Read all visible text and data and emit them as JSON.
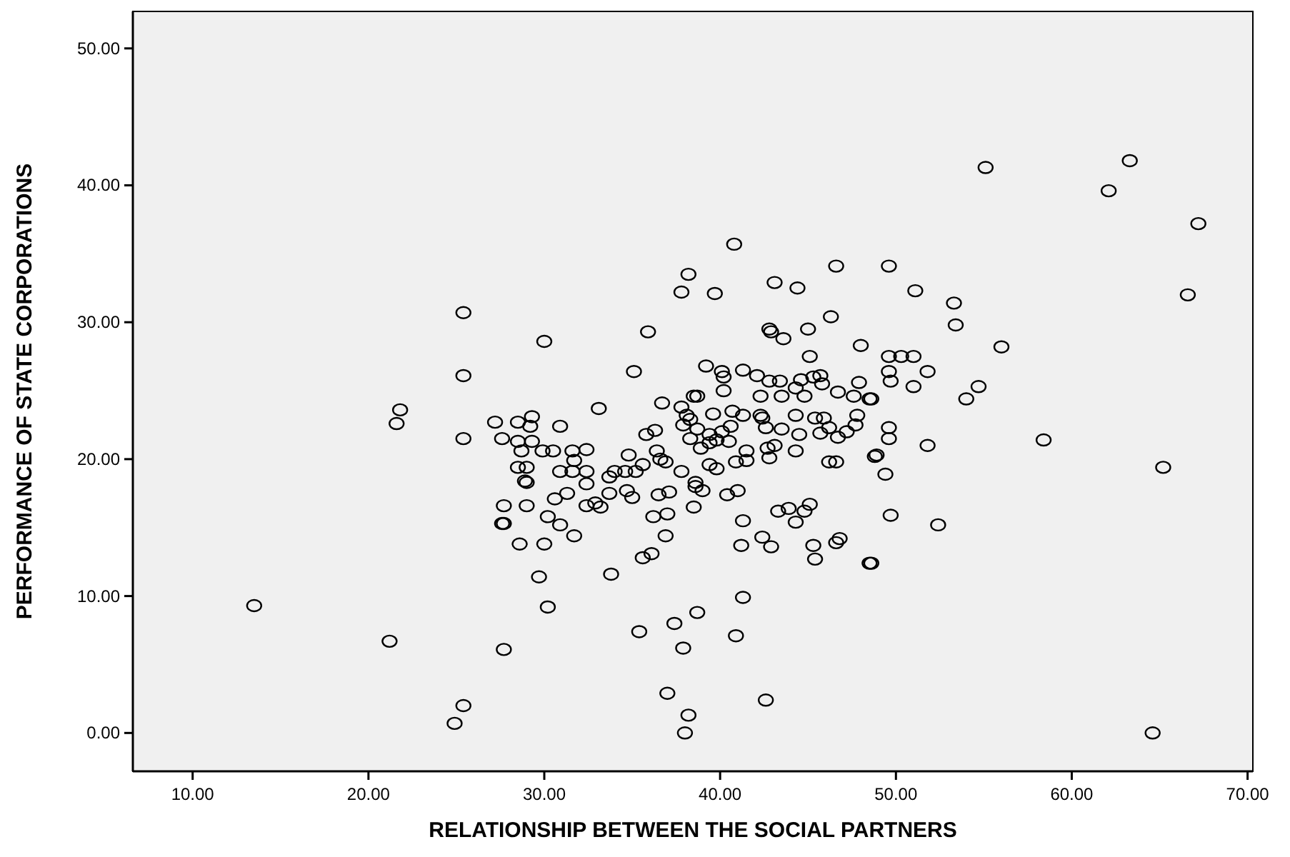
{
  "chart_data": {
    "type": "scatter",
    "xlabel": "RELATIONSHIP BETWEEN THE SOCIAL PARTNERS",
    "ylabel": "PERFORMANCE OF STATE CORPORATIONS",
    "marker": "circle",
    "grid": false,
    "xlim": [
      6.6,
      70.3
    ],
    "ylim": [
      -2.8,
      52.7
    ],
    "xticks": [
      {
        "value": 10,
        "label": "10.00"
      },
      {
        "value": 20,
        "label": "20.00"
      },
      {
        "value": 30,
        "label": "30.00"
      },
      {
        "value": 40,
        "label": "40.00"
      },
      {
        "value": 50,
        "label": "50.00"
      },
      {
        "value": 60,
        "label": "60.00"
      },
      {
        "value": 70,
        "label": "70.00"
      }
    ],
    "yticks": [
      {
        "value": 0,
        "label": "0.00"
      },
      {
        "value": 10,
        "label": "10.00"
      },
      {
        "value": 20,
        "label": "20.00"
      },
      {
        "value": 30,
        "label": "30.00"
      },
      {
        "value": 40,
        "label": "40.00"
      },
      {
        "value": 50,
        "label": "50.00"
      }
    ],
    "series": [
      {
        "color": "#000000",
        "x": [
          13.5,
          21.2,
          24.9,
          25.4,
          25.4,
          25.4,
          25.4,
          21.8,
          21.6,
          27.2,
          27.6,
          27.7,
          55.1,
          63.3,
          62.1,
          67.2,
          66.6,
          49.6,
          51.1,
          53.3,
          53.4,
          56.0,
          49.6,
          50.3,
          51.0,
          49.6,
          49.7,
          51.8,
          51.0,
          54.7,
          54.0,
          48.6,
          49.6,
          49.6,
          51.8,
          48.9,
          58.4,
          65.2,
          49.4,
          49.7,
          52.4,
          48.6,
          64.6,
          27.7,
          29.0,
          27.6,
          28.6,
          30.0,
          29.7,
          30.2,
          27.7,
          33.8,
          30.2,
          30.9,
          31.7,
          30.6,
          31.3,
          29.0,
          35.6,
          36.1,
          36.9,
          36.2,
          37.0,
          36.5,
          37.1,
          38.5,
          35.4,
          37.4,
          38.7,
          37.9,
          37.0,
          38.2,
          38.0,
          42.6,
          40.9,
          41.3,
          41.3,
          41.2,
          42.4,
          42.9,
          40.4,
          41.0,
          43.3,
          43.9,
          44.8,
          45.1,
          44.3,
          45.3,
          45.4,
          46.6,
          46.8,
          48.5,
          40.8,
          38.2,
          37.8,
          39.7,
          43.1,
          44.4,
          46.6,
          46.3,
          42.8,
          42.9,
          43.6,
          45.0,
          48.0,
          35.9,
          30.0,
          35.1,
          45.1,
          33.1,
          39.2,
          40.1,
          40.2,
          41.3,
          42.1,
          42.8,
          43.4,
          40.2,
          42.3,
          43.5,
          44.3,
          44.8,
          44.6,
          45.3,
          45.7,
          45.8,
          46.7,
          47.6,
          47.9,
          48.5,
          36.7,
          37.8,
          38.5,
          38.7,
          38.1,
          39.6,
          40.7,
          41.3,
          42.3,
          42.4,
          44.3,
          45.4,
          45.9,
          47.8,
          47.7,
          47.2,
          46.7,
          46.2,
          48.8,
          42.6,
          43.5,
          44.5,
          45.7,
          37.9,
          38.3,
          38.7,
          39.4,
          40.1,
          40.6,
          40.5,
          38.3,
          38.9,
          39.4,
          39.8,
          41.5,
          42.7,
          43.1,
          42.8,
          44.3,
          40.9,
          41.5,
          39.4,
          39.8,
          37.8,
          38.6,
          46.2,
          46.6,
          36.3,
          35.8,
          36.4,
          36.9,
          36.6,
          34.8,
          34.6,
          35.2,
          35.6,
          34.0,
          33.7,
          31.6,
          32.4,
          31.7,
          31.6,
          32.4,
          30.9,
          28.5,
          29.3,
          29.2,
          30.9,
          28.5,
          29.3,
          29.9,
          30.5,
          28.7,
          28.5,
          29.0,
          28.9,
          32.4,
          33.2,
          33.7,
          34.7,
          35.0,
          32.4,
          32.9,
          38.6,
          39.0
        ],
        "values": [
          9.3,
          6.7,
          0.7,
          2.0,
          30.7,
          26.1,
          21.5,
          23.6,
          22.6,
          22.7,
          21.5,
          15.3,
          41.3,
          41.8,
          39.6,
          37.2,
          32.0,
          34.1,
          32.3,
          31.4,
          29.8,
          28.2,
          27.5,
          27.5,
          27.5,
          26.4,
          25.7,
          26.4,
          25.3,
          25.3,
          24.4,
          24.4,
          22.3,
          21.5,
          21.0,
          20.3,
          21.4,
          19.4,
          18.9,
          15.9,
          15.2,
          12.4,
          0,
          16.6,
          16.6,
          15.3,
          13.8,
          13.8,
          11.4,
          9.2,
          6.1,
          11.6,
          15.8,
          15.2,
          14.4,
          17.1,
          17.5,
          18.3,
          12.8,
          13.1,
          14.4,
          15.8,
          16.0,
          17.4,
          17.6,
          16.5,
          7.4,
          8.0,
          8.8,
          6.2,
          2.9,
          1.3,
          0,
          2.4,
          7.1,
          9.9,
          15.5,
          13.7,
          14.3,
          13.6,
          17.4,
          17.7,
          16.2,
          16.4,
          16.2,
          16.7,
          15.4,
          13.7,
          12.7,
          13.9,
          14.2,
          12.4,
          35.7,
          33.5,
          32.2,
          32.1,
          32.9,
          32.5,
          34.1,
          30.4,
          29.5,
          29.3,
          28.8,
          29.5,
          28.3,
          29.3,
          28.6,
          26.4,
          27.5,
          23.7,
          26.8,
          26.4,
          26.0,
          26.5,
          26.1,
          25.7,
          25.7,
          25.0,
          24.6,
          24.6,
          25.2,
          24.6,
          25.8,
          26.0,
          26.1,
          25.5,
          24.9,
          24.6,
          25.6,
          24.4,
          24.1,
          23.8,
          24.6,
          24.6,
          23.2,
          23.3,
          23.5,
          23.2,
          23.2,
          23.0,
          23.2,
          23.0,
          23.0,
          23.2,
          22.5,
          22.0,
          21.6,
          22.3,
          20.2,
          22.3,
          22.2,
          21.8,
          21.9,
          22.5,
          22.9,
          22.2,
          21.8,
          22.0,
          22.4,
          21.3,
          21.5,
          20.8,
          21.2,
          21.4,
          20.6,
          20.8,
          21.0,
          20.1,
          20.6,
          19.8,
          19.9,
          19.6,
          19.3,
          19.1,
          18.3,
          19.8,
          19.8,
          22.1,
          21.8,
          20.6,
          19.8,
          20.0,
          20.3,
          19.1,
          19.1,
          19.6,
          19.1,
          18.7,
          20.6,
          20.7,
          19.9,
          19.1,
          19.1,
          19.1,
          22.7,
          23.1,
          22.4,
          22.4,
          21.3,
          21.3,
          20.6,
          20.6,
          20.6,
          19.4,
          19.4,
          18.4,
          18.2,
          16.5,
          17.5,
          17.7,
          17.2,
          16.6,
          16.8,
          18.0,
          17.7
        ]
      }
    ]
  }
}
